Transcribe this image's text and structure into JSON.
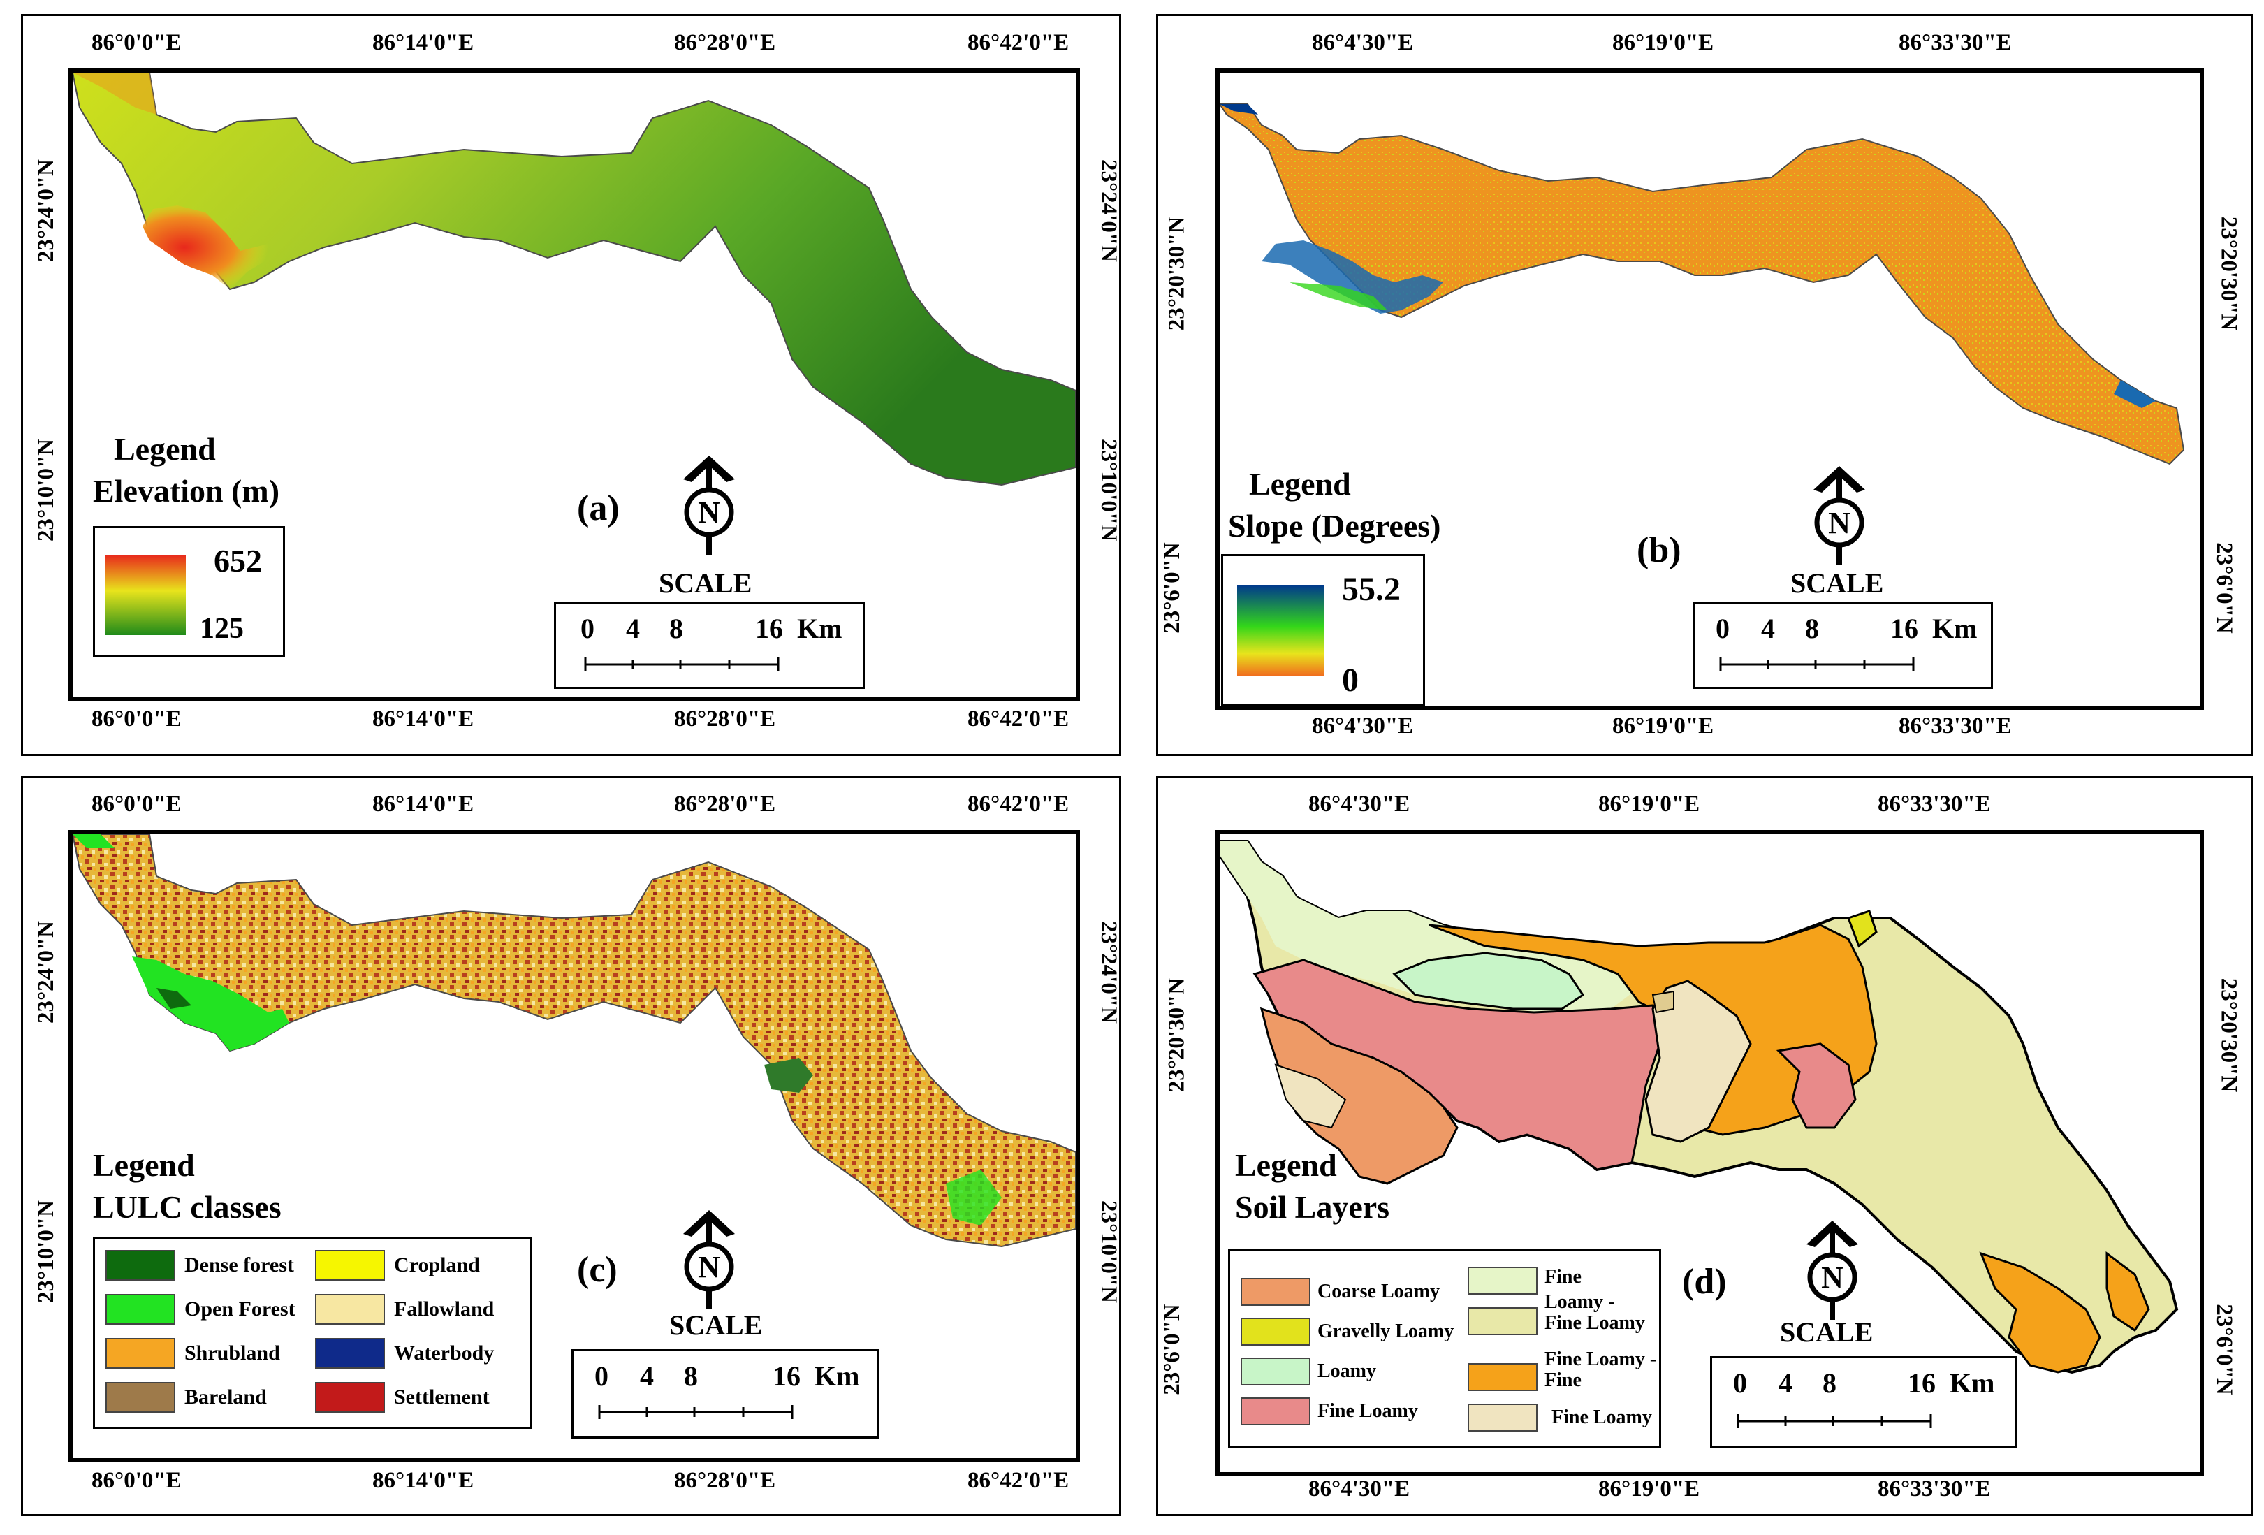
{
  "colors": {
    "elevation_high": "#e8281c",
    "elevation_mid": "#e8e41c",
    "elevation_low": "#1f8a1a",
    "slope_high": "#003a8c",
    "slope_mid": "#33d61a",
    "slope_low": "#f08c1e",
    "dense_forest": "#0e6b0e",
    "open_forest": "#22e322",
    "shrubland": "#f5a623",
    "bareland": "#9e7a4a",
    "cropland": "#f6f600",
    "fallowland": "#f7e7a2",
    "waterbody": "#0f2a8a",
    "settlement": "#c21a1a",
    "coarse_loamy": "#ee9a66",
    "gravelly_loamy": "#e2e21c",
    "loamy": "#c8f5c8",
    "fine_loamy_pink": "#e88a8a",
    "fine": "#e6f5c8",
    "loamy_fine_loamy": "#e8e8a8",
    "fine_loamy_fine": "#f5a21a",
    "fine_loamy_beige": "#f0e4c0"
  },
  "panels": {
    "a": {
      "label": "(a)",
      "top_ticks": [
        "86°0'0\"E",
        "86°14'0\"E",
        "86°28'0\"E",
        "86°42'0\"E"
      ],
      "bottom_ticks": [
        "86°0'0\"E",
        "86°14'0\"E",
        "86°28'0\"E",
        "86°42'0\"E"
      ],
      "left_ticks": [
        "23°24'0\"N",
        "23°10'0\"N"
      ],
      "right_ticks": [
        "23°24'0\"N",
        "23°10'0\"N"
      ],
      "legend_title_1": "Legend",
      "legend_title_2": "Elevation (m)",
      "legend_max": "652",
      "legend_min": "125",
      "north": "N",
      "scale_title": "SCALE",
      "scale_values": [
        "0",
        "4",
        "8",
        "16",
        "Km"
      ]
    },
    "b": {
      "label": "(b)",
      "top_ticks": [
        "86°4'30\"E",
        "86°19'0\"E",
        "86°33'30\"E"
      ],
      "bottom_ticks": [
        "86°4'30\"E",
        "86°19'0\"E",
        "86°33'30\"E"
      ],
      "left_ticks": [
        "23°20'30\"N",
        "23°6'0\"N"
      ],
      "right_ticks": [
        "23°20'30\"N",
        "23°6'0\"N"
      ],
      "legend_title_1": "Legend",
      "legend_title_2": "Slope (Degrees)",
      "legend_max": "55.2",
      "legend_min": "0",
      "north": "N",
      "scale_title": "SCALE",
      "scale_values": [
        "0",
        "4",
        "8",
        "16",
        "Km"
      ]
    },
    "c": {
      "label": "(c)",
      "top_ticks": [
        "86°0'0\"E",
        "86°14'0\"E",
        "86°28'0\"E",
        "86°42'0\"E"
      ],
      "bottom_ticks": [
        "86°0'0\"E",
        "86°14'0\"E",
        "86°28'0\"E",
        "86°42'0\"E"
      ],
      "left_ticks": [
        "23°24'0\"N",
        "23°10'0\"N"
      ],
      "right_ticks": [
        "23°24'0\"N",
        "23°10'0\"N"
      ],
      "legend_title_1": "Legend",
      "legend_title_2": "LULC classes",
      "classes": [
        "Dense forest",
        "Open Forest",
        "Shrubland",
        "Bareland",
        "Cropland",
        "Fallowland",
        "Waterbody",
        "Settlement"
      ],
      "north": "N",
      "scale_title": "SCALE",
      "scale_values": [
        "0",
        "4",
        "8",
        "16",
        "Km"
      ]
    },
    "d": {
      "label": "(d)",
      "top_ticks": [
        "86°4'30\"E",
        "86°19'0\"E",
        "86°33'30\"E"
      ],
      "bottom_ticks": [
        "86°4'30\"E",
        "86°19'0\"E",
        "86°33'30\"E"
      ],
      "left_ticks": [
        "23°20'30\"N",
        "23°6'0\"N"
      ],
      "right_ticks": [
        "23°20'30\"N",
        "23°6'0\"N"
      ],
      "legend_title_1": "Legend",
      "legend_title_2": "Soil Layers",
      "soil_classes": [
        "Coarse Loamy",
        "Gravelly Loamy",
        "Loamy",
        "Fine Loamy",
        "Fine",
        "Loamy -",
        "Fine Loamy",
        "Fine Loamy -",
        "Fine",
        "Fine Loamy"
      ],
      "north": "N",
      "scale_title": "SCALE",
      "scale_values": [
        "0",
        "4",
        "8",
        "16",
        "Km"
      ]
    }
  }
}
